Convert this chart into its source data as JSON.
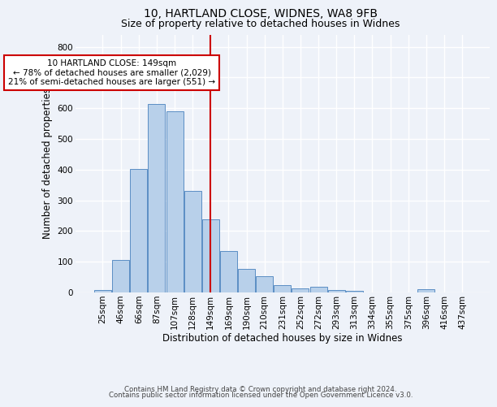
{
  "title1": "10, HARTLAND CLOSE, WIDNES, WA8 9FB",
  "title2": "Size of property relative to detached houses in Widnes",
  "xlabel": "Distribution of detached houses by size in Widnes",
  "ylabel": "Number of detached properties",
  "footnote1": "Contains HM Land Registry data © Crown copyright and database right 2024.",
  "footnote2": "Contains public sector information licensed under the Open Government Licence v3.0.",
  "bin_labels": [
    "25sqm",
    "46sqm",
    "66sqm",
    "87sqm",
    "107sqm",
    "128sqm",
    "149sqm",
    "169sqm",
    "190sqm",
    "210sqm",
    "231sqm",
    "252sqm",
    "272sqm",
    "293sqm",
    "313sqm",
    "334sqm",
    "355sqm",
    "375sqm",
    "396sqm",
    "416sqm",
    "437sqm"
  ],
  "bar_values": [
    7,
    106,
    403,
    614,
    591,
    330,
    238,
    135,
    77,
    53,
    25,
    14,
    18,
    8,
    5,
    0,
    0,
    0,
    10,
    0,
    0
  ],
  "bar_color": "#b8d0ea",
  "bar_edge_color": "#5b8ec4",
  "vline_index": 6,
  "vline_color": "#cc0000",
  "annotation_text": "10 HARTLAND CLOSE: 149sqm\n← 78% of detached houses are smaller (2,029)\n21% of semi-detached houses are larger (551) →",
  "annotation_box_color": "#ffffff",
  "annotation_box_edge": "#cc0000",
  "ylim": [
    0,
    840
  ],
  "yticks": [
    0,
    100,
    200,
    300,
    400,
    500,
    600,
    700,
    800
  ],
  "bg_color": "#eef2f9",
  "grid_color": "#ffffff",
  "title1_fontsize": 10,
  "title2_fontsize": 9,
  "xlabel_fontsize": 8.5,
  "ylabel_fontsize": 8.5,
  "tick_fontsize": 7.5,
  "footnote_fontsize": 6.2
}
